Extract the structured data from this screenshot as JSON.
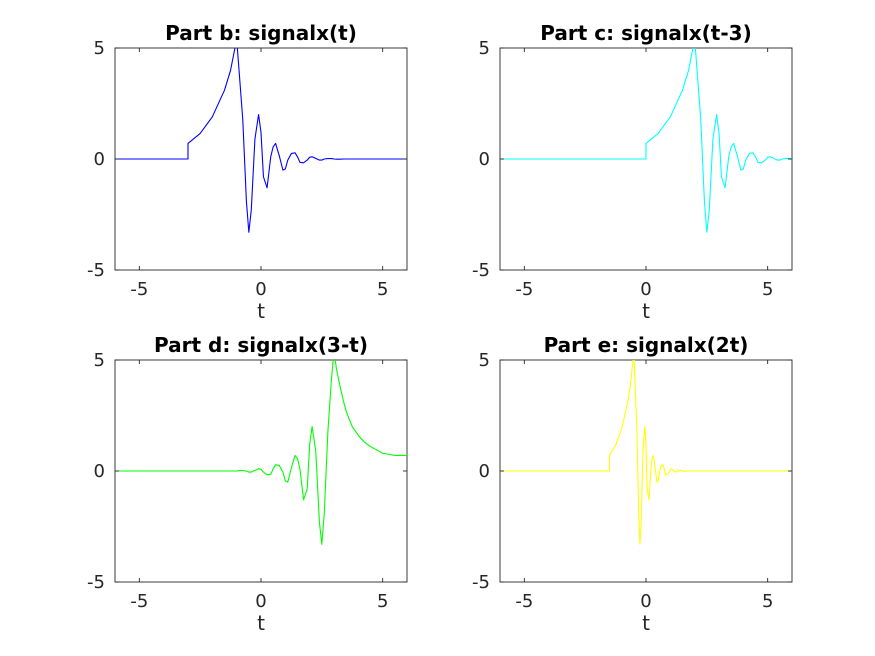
{
  "chart_data": [
    {
      "type": "line",
      "title": "Part b: signalx(t)",
      "xlabel": "t",
      "ylabel": "",
      "xlim": [
        -6,
        6
      ],
      "ylim": [
        -5,
        5
      ],
      "xticks": [
        -5,
        0,
        5
      ],
      "xtick_labels": [
        "-5",
        "0",
        "5"
      ],
      "yticks": [
        -5,
        0,
        5
      ],
      "ytick_labels": [
        "-5",
        "0",
        "5"
      ],
      "color": "#0000ff",
      "series": [
        {
          "name": "x(t)",
          "x": [
            -6,
            -3,
            -3,
            -2.5,
            -2,
            -1.5,
            -1.25,
            -1,
            -0.75,
            -0.6,
            -0.5,
            -0.4,
            -0.25,
            -0.1,
            0,
            0.1,
            0.25,
            0.4,
            0.5,
            0.6,
            0.75,
            0.9,
            1,
            1.1,
            1.25,
            1.4,
            1.5,
            1.6,
            1.75,
            1.9,
            2,
            2.1,
            2.25,
            2.4,
            2.5,
            2.6,
            2.75,
            2.9,
            3,
            3.1,
            3.25,
            3.4,
            3.5,
            3.6,
            3.75,
            3.9,
            4,
            6
          ],
          "y": [
            0,
            0,
            0.7,
            1.15,
            1.9,
            3.1,
            4.0,
            5.4,
            1.8,
            -1.9,
            -3.3,
            -2.3,
            0.9,
            2.0,
            1.2,
            -0.8,
            -1.3,
            0.1,
            0.55,
            0.7,
            0.15,
            -0.5,
            -0.45,
            -0.05,
            0.25,
            0.28,
            0.1,
            -0.15,
            -0.17,
            -0.05,
            0.08,
            0.1,
            0.03,
            -0.05,
            -0.05,
            0,
            0.02,
            0.02,
            0,
            -0.01,
            -0.01,
            0,
            0,
            0,
            0,
            0,
            0,
            0
          ]
        }
      ]
    },
    {
      "type": "line",
      "title": "Part c: signalx(t-3)",
      "xlabel": "t",
      "ylabel": "",
      "xlim": [
        -6,
        6
      ],
      "ylim": [
        -5,
        5
      ],
      "xticks": [
        -5,
        0,
        5
      ],
      "xtick_labels": [
        "-5",
        "0",
        "5"
      ],
      "yticks": [
        -5,
        0,
        5
      ],
      "ytick_labels": [
        "-5",
        "0",
        "5"
      ],
      "color": "#00ffff",
      "series": [
        {
          "name": "x(t-3)",
          "x": [
            -6,
            0,
            0,
            0.5,
            1,
            1.5,
            1.75,
            2,
            2.25,
            2.4,
            2.5,
            2.6,
            2.75,
            2.9,
            3,
            3.1,
            3.25,
            3.4,
            3.5,
            3.6,
            3.75,
            3.9,
            4,
            4.1,
            4.25,
            4.4,
            4.5,
            4.6,
            4.75,
            4.9,
            5,
            5.1,
            5.25,
            5.4,
            5.5,
            5.6,
            5.75,
            5.9,
            6
          ],
          "y": [
            0,
            0,
            0.7,
            1.15,
            1.9,
            3.1,
            4.0,
            5.4,
            1.8,
            -1.9,
            -3.3,
            -2.3,
            0.9,
            2.0,
            1.2,
            -0.8,
            -1.3,
            0.1,
            0.55,
            0.7,
            0.15,
            -0.5,
            -0.45,
            -0.05,
            0.25,
            0.28,
            0.1,
            -0.15,
            -0.17,
            -0.05,
            0.08,
            0.1,
            0.03,
            -0.05,
            -0.05,
            0,
            0.02,
            0.02,
            0.05
          ]
        }
      ]
    },
    {
      "type": "line",
      "title": "Part d: signalx(3-t)",
      "xlabel": "t",
      "ylabel": "",
      "xlim": [
        -6,
        6
      ],
      "ylim": [
        -5,
        5
      ],
      "xticks": [
        -5,
        0,
        5
      ],
      "xtick_labels": [
        "-5",
        "0",
        "5"
      ],
      "yticks": [
        -5,
        0,
        5
      ],
      "ytick_labels": [
        "-5",
        "0",
        "5"
      ],
      "color": "#00ff00",
      "series": [
        {
          "name": "x(3-t)",
          "x": [
            -6,
            -1,
            -0.9,
            -0.75,
            -0.6,
            -0.5,
            -0.4,
            -0.25,
            -0.1,
            0,
            0.1,
            0.25,
            0.4,
            0.5,
            0.6,
            0.75,
            0.9,
            1,
            1.1,
            1.25,
            1.4,
            1.5,
            1.6,
            1.75,
            1.9,
            2,
            2.1,
            2.25,
            2.4,
            2.5,
            2.6,
            2.75,
            2.9,
            3,
            3.1,
            3.25,
            3.4,
            3.5,
            3.6,
            3.75,
            4,
            4.25,
            4.5,
            5,
            5.5,
            6
          ],
          "y": [
            0,
            0,
            0.02,
            0.02,
            0,
            -0.05,
            -0.05,
            0.03,
            0.1,
            0.08,
            -0.05,
            -0.17,
            -0.15,
            0.1,
            0.28,
            0.25,
            -0.05,
            -0.45,
            -0.5,
            0.15,
            0.7,
            0.55,
            0.1,
            -1.3,
            -0.8,
            1.2,
            2.0,
            0.9,
            -2.3,
            -3.3,
            -1.9,
            1.8,
            4.2,
            5.4,
            4.6,
            3.8,
            3.1,
            2.7,
            2.4,
            2.0,
            1.6,
            1.3,
            1.1,
            0.8,
            0.7,
            0.7
          ]
        }
      ]
    },
    {
      "type": "line",
      "title": "Part e: signalx(2t)",
      "xlabel": "t",
      "ylabel": "",
      "xlim": [
        -6,
        6
      ],
      "ylim": [
        -5,
        5
      ],
      "xticks": [
        -5,
        0,
        5
      ],
      "xtick_labels": [
        "-5",
        "0",
        "5"
      ],
      "yticks": [
        -5,
        0,
        5
      ],
      "ytick_labels": [
        "-5",
        "0",
        "5"
      ],
      "color": "#ffff00",
      "series": [
        {
          "name": "x(2t)",
          "x": [
            -6,
            -1.5,
            -1.5,
            -1.25,
            -1,
            -0.75,
            -0.625,
            -0.5,
            -0.375,
            -0.3,
            -0.25,
            -0.2,
            -0.125,
            -0.05,
            0,
            0.05,
            0.125,
            0.2,
            0.25,
            0.3,
            0.375,
            0.45,
            0.5,
            0.55,
            0.625,
            0.7,
            0.75,
            0.8,
            0.875,
            0.95,
            1,
            1.05,
            1.125,
            1.2,
            1.25,
            1.3,
            1.375,
            1.45,
            1.5,
            1.55,
            1.625,
            1.7,
            1.75,
            1.8,
            1.875,
            1.95,
            2,
            6
          ],
          "y": [
            0,
            0,
            0.7,
            1.15,
            1.9,
            3.1,
            4.0,
            5.4,
            1.8,
            -1.9,
            -3.3,
            -2.3,
            0.9,
            2.0,
            1.2,
            -0.8,
            -1.3,
            0.1,
            0.55,
            0.7,
            0.15,
            -0.5,
            -0.45,
            -0.05,
            0.25,
            0.28,
            0.1,
            -0.15,
            -0.17,
            -0.05,
            0.08,
            0.1,
            0.03,
            -0.05,
            -0.05,
            0,
            0.02,
            0.02,
            0,
            -0.01,
            -0.01,
            0,
            0,
            0,
            0,
            0,
            0,
            0
          ]
        }
      ]
    }
  ]
}
